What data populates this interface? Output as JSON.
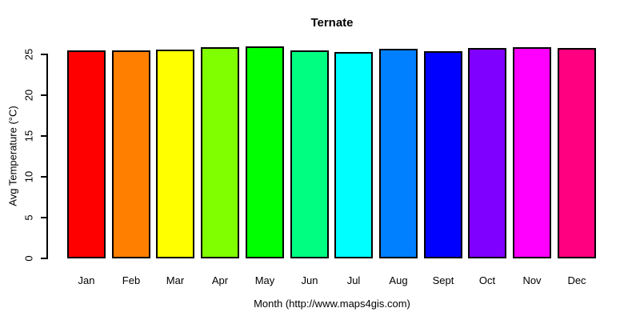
{
  "page": {
    "background": "#ffffff",
    "text_color": "#000000"
  },
  "chart_data": {
    "type": "bar",
    "title": "Ternate",
    "xlabel": "Month (http://www.maps4gis.com)",
    "ylabel": "Avg Temperature (°C)",
    "categories": [
      "Jan",
      "Feb",
      "Mar",
      "Apr",
      "May",
      "Jun",
      "Jul",
      "Aug",
      "Sept",
      "Oct",
      "Nov",
      "Dec"
    ],
    "values": [
      25.5,
      25.5,
      25.6,
      25.9,
      26.0,
      25.5,
      25.3,
      25.7,
      25.4,
      25.8,
      25.9,
      25.8
    ],
    "bar_colors": [
      "#FF0000",
      "#FF8000",
      "#FFFF00",
      "#80FF00",
      "#00FF00",
      "#00FF80",
      "#00FFFF",
      "#0080FF",
      "#0000FF",
      "#8000FF",
      "#FF00FF",
      "#FF0080"
    ],
    "bar_border_color": "#000000",
    "axis_color": "#000000",
    "yticks": [
      0,
      5,
      10,
      15,
      20,
      25
    ],
    "ylim": [
      0,
      26
    ],
    "grid": false,
    "legend_position": "none"
  }
}
